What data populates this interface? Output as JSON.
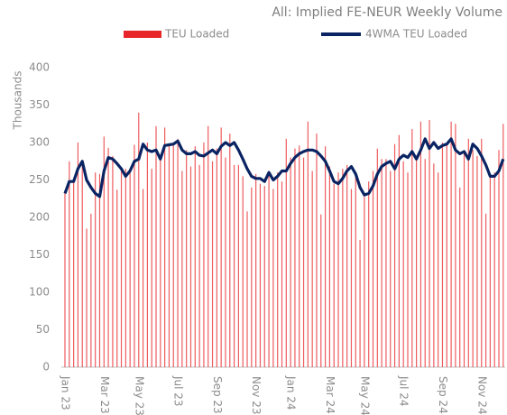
{
  "chart_data": {
    "type": "bar_line",
    "title": "All: Implied FE-NEUR Weekly Volume",
    "y_label": "Thousands",
    "categories": [
      "Jan 23",
      null,
      null,
      null,
      null,
      null,
      null,
      null,
      null,
      "Mar 23",
      null,
      null,
      null,
      null,
      null,
      null,
      null,
      "May 23",
      null,
      null,
      null,
      null,
      null,
      null,
      null,
      null,
      "Jul 23",
      null,
      null,
      null,
      null,
      null,
      null,
      null,
      null,
      "Sep 23",
      null,
      null,
      null,
      null,
      null,
      null,
      null,
      null,
      "Nov 23",
      null,
      null,
      null,
      null,
      null,
      null,
      null,
      "Jan 24",
      null,
      null,
      null,
      null,
      null,
      null,
      null,
      null,
      "Mar 24",
      null,
      null,
      null,
      null,
      null,
      null,
      null,
      "May 24",
      null,
      null,
      null,
      null,
      null,
      null,
      null,
      null,
      "Jul 24",
      null,
      null,
      null,
      null,
      null,
      null,
      null,
      null,
      "Sep 24",
      null,
      null,
      null,
      null,
      null,
      null,
      null,
      null,
      "Nov 24",
      null,
      null,
      null,
      null,
      null
    ],
    "series": [
      {
        "name": "TEU Loaded",
        "kind": "bar",
        "color": "#e8262a",
        "values": [
          235,
          275,
          250,
          300,
          270,
          185,
          205,
          260,
          258,
          308,
          293,
          282,
          237,
          265,
          265,
          260,
          297,
          340,
          238,
          300,
          265,
          322,
          283,
          320,
          298,
          300,
          305,
          262,
          290,
          268,
          295,
          270,
          300,
          322,
          275,
          292,
          320,
          280,
          312,
          270,
          270,
          255,
          208,
          240,
          258,
          245,
          242,
          262,
          238,
          260,
          248,
          305,
          280,
          292,
          296,
          280,
          328,
          262,
          312,
          204,
          295,
          268,
          245,
          260,
          265,
          270,
          238,
          255,
          170,
          228,
          248,
          262,
          292,
          278,
          278,
          262,
          298,
          310,
          275,
          260,
          318,
          282,
          328,
          278,
          330,
          272,
          260,
          300,
          300,
          328,
          325,
          240,
          290,
          305,
          290,
          282,
          305,
          205,
          255,
          260,
          290,
          325
        ]
      },
      {
        "name": "4WMA TEU Loaded",
        "kind": "line",
        "color": "#0a2463",
        "values": [
          232,
          248,
          248,
          265,
          275,
          250,
          240,
          232,
          228,
          262,
          280,
          278,
          272,
          265,
          255,
          262,
          275,
          278,
          298,
          290,
          288,
          290,
          278,
          296,
          297,
          298,
          302,
          290,
          285,
          285,
          288,
          283,
          282,
          286,
          290,
          285,
          295,
          300,
          296,
          300,
          290,
          278,
          265,
          255,
          252,
          252,
          248,
          260,
          250,
          255,
          262,
          262,
          272,
          280,
          285,
          288,
          290,
          290,
          288,
          282,
          275,
          262,
          248,
          245,
          252,
          262,
          268,
          258,
          240,
          230,
          232,
          242,
          258,
          268,
          272,
          275,
          265,
          278,
          283,
          280,
          288,
          278,
          290,
          305,
          292,
          300,
          292,
          296,
          298,
          305,
          290,
          285,
          288,
          278,
          298,
          292,
          282,
          270,
          255,
          255,
          262,
          278
        ]
      }
    ],
    "ylim": [
      0,
      400
    ],
    "yticks": [
      0,
      50,
      100,
      150,
      200,
      250,
      300,
      350,
      400
    ],
    "grid": false
  }
}
